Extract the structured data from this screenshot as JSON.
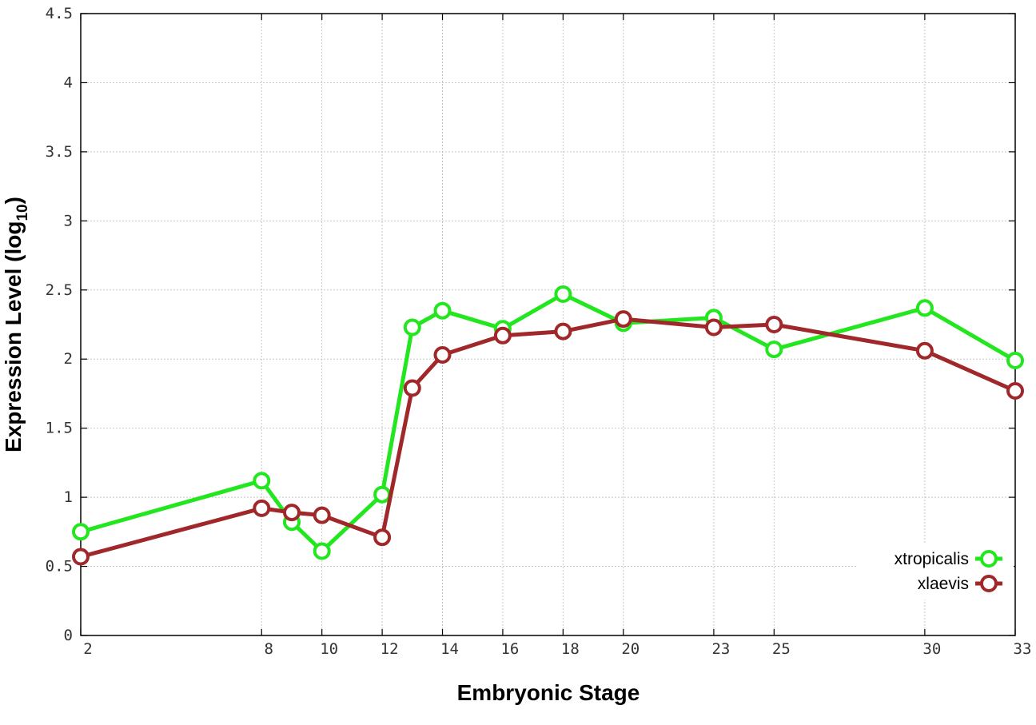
{
  "chart_data": {
    "type": "line",
    "xlabel": "Embryonic Stage",
    "ylabel_main": "Expression Level (log",
    "ylabel_sub": "10",
    "ylabel_close": ")",
    "x_ticks": [
      2,
      8,
      10,
      12,
      14,
      16,
      18,
      20,
      23,
      25,
      30,
      33
    ],
    "y_ticks": [
      "0",
      "0.5",
      "1",
      "1.5",
      "2",
      "2.5",
      "3",
      "3.5",
      "4",
      "4.5"
    ],
    "xlim": [
      2,
      33
    ],
    "ylim": [
      0,
      4.5
    ],
    "grid": true,
    "legend_position": "bottom-right",
    "x": [
      2,
      8,
      9,
      10,
      12,
      13,
      14,
      16,
      18,
      20,
      23,
      25,
      30,
      33
    ],
    "series": [
      {
        "name": "xtropicalis",
        "color": "#22e61e",
        "values": [
          0.75,
          1.12,
          0.82,
          0.61,
          1.02,
          2.23,
          2.35,
          2.22,
          2.47,
          2.26,
          2.3,
          2.07,
          2.37,
          1.99
        ]
      },
      {
        "name": "xlaevis",
        "color": "#a0282a",
        "values": [
          0.57,
          0.92,
          0.89,
          0.87,
          0.71,
          1.79,
          2.03,
          2.17,
          2.2,
          2.29,
          2.23,
          2.25,
          2.06,
          1.77
        ]
      }
    ]
  }
}
